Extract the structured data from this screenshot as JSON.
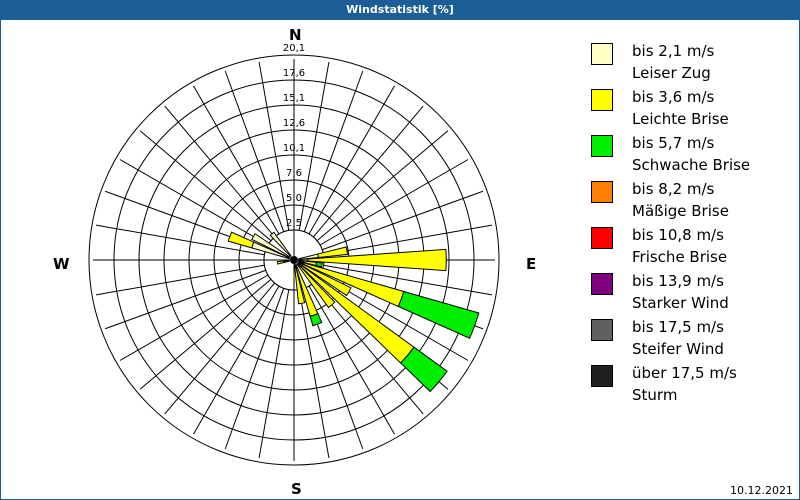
{
  "window": {
    "title": "Windstatistik [%]"
  },
  "footer": {
    "date": "10.12.2021"
  },
  "compass": {
    "n": "N",
    "e": "E",
    "s": "S",
    "w": "W"
  },
  "legend": [
    {
      "color": "#ffffc8",
      "line1": "bis 2,1 m/s",
      "line2": "Leiser Zug"
    },
    {
      "color": "#ffff00",
      "line1": "bis 3,6 m/s",
      "line2": "Leichte Brise"
    },
    {
      "color": "#00ee00",
      "line1": "bis 5,7 m/s",
      "line2": "Schwache Brise"
    },
    {
      "color": "#ff8000",
      "line1": "bis 8,2 m/s",
      "line2": "Mäßige Brise"
    },
    {
      "color": "#ff0000",
      "line1": "bis 10,8 m/s",
      "line2": "Frische Brise"
    },
    {
      "color": "#800080",
      "line1": "bis 13,9 m/s",
      "line2": "Starker Wind"
    },
    {
      "color": "#606060",
      "line1": "bis 17,5 m/s",
      "line2": "Steifer Wind"
    },
    {
      "color": "#202020",
      "line1": "über 17,5 m/s",
      "line2": "Sturm"
    }
  ],
  "chart_data": {
    "type": "wind_rose",
    "title": "Windstatistik [%]",
    "radial_ticks": [
      "2,5",
      "5,0",
      "7,6",
      "10,1",
      "12,6",
      "15,1",
      "17,6",
      "20,1"
    ],
    "radial_max": 20.1,
    "sector_width_deg": 10,
    "categories": [
      "bis 2,1 m/s",
      "bis 3,6 m/s",
      "bis 5,7 m/s",
      "bis 8,2 m/s",
      "bis 10,8 m/s",
      "bis 13,9 m/s",
      "bis 17,5 m/s",
      "über 17,5 m/s"
    ],
    "sectors": [
      {
        "dir": 80,
        "values": [
          2.0,
          3.0,
          0,
          0,
          0,
          0,
          0,
          0
        ]
      },
      {
        "dir": 90,
        "values": [
          0.9,
          14.2,
          0,
          0,
          0,
          0,
          0,
          0
        ]
      },
      {
        "dir": 100,
        "values": [
          0.5,
          1.3,
          0.6,
          0,
          0,
          0,
          0,
          0
        ]
      },
      {
        "dir": 110,
        "values": [
          0.5,
          10.7,
          8.0,
          0,
          0,
          0,
          0,
          0
        ]
      },
      {
        "dir": 120,
        "values": [
          0.5,
          5.5,
          0,
          0,
          0,
          0,
          0,
          0
        ]
      },
      {
        "dir": 130,
        "values": [
          0.5,
          14.2,
          4.2,
          0,
          0,
          0,
          0,
          0
        ]
      },
      {
        "dir": 140,
        "values": [
          0.3,
          5.2,
          0,
          0,
          0,
          0,
          0,
          0
        ]
      },
      {
        "dir": 160,
        "values": [
          0.3,
          5.2,
          1.0,
          0,
          0,
          0,
          0,
          0
        ]
      },
      {
        "dir": 170,
        "values": [
          0.3,
          3.7,
          0,
          0,
          0,
          0,
          0,
          0
        ]
      },
      {
        "dir": 260,
        "values": [
          0.5,
          0.7,
          0,
          0,
          0,
          0,
          0,
          0
        ]
      },
      {
        "dir": 290,
        "values": [
          4.0,
          2.5,
          0,
          0,
          0,
          0,
          0,
          0
        ]
      },
      {
        "dir": 300,
        "values": [
          4.3,
          0,
          0,
          0,
          0,
          0,
          0,
          0
        ]
      },
      {
        "dir": 320,
        "values": [
          3.0,
          0,
          0,
          0,
          0,
          0,
          0,
          0
        ]
      }
    ],
    "grid": true,
    "legend_position": "right"
  }
}
